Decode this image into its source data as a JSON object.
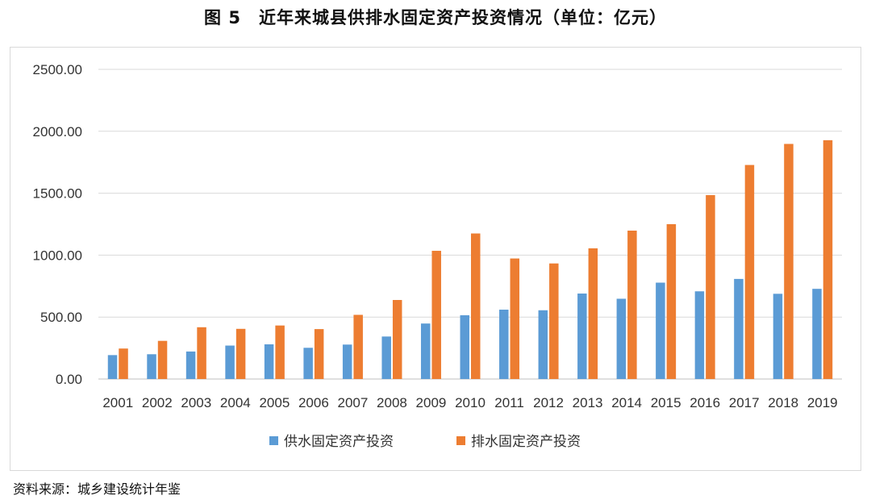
{
  "title": "图 5　近年来城县供排水固定资产投资情况（单位：亿元）",
  "source": "资料来源：城乡建设统计年鉴",
  "colors": {
    "supply": "#5b9bd5",
    "drain": "#ed7d31",
    "grid": "#d9d9d9"
  },
  "chart_data": {
    "type": "bar",
    "title": "图 5　近年来城县供排水固定资产投资情况（单位：亿元）",
    "categories": [
      "2001",
      "2002",
      "2003",
      "2004",
      "2005",
      "2006",
      "2007",
      "2008",
      "2009",
      "2010",
      "2011",
      "2012",
      "2013",
      "2014",
      "2015",
      "2016",
      "2017",
      "2018",
      "2019"
    ],
    "series": [
      {
        "name": "供水固定资产投资",
        "values": [
          193,
          200,
          222,
          270,
          280,
          252,
          278,
          343,
          448,
          515,
          560,
          555,
          690,
          648,
          778,
          708,
          808,
          688,
          728
        ]
      },
      {
        "name": "排水固定资产投资",
        "values": [
          246,
          308,
          418,
          405,
          432,
          403,
          518,
          638,
          1035,
          1175,
          973,
          933,
          1055,
          1198,
          1250,
          1485,
          1728,
          1898,
          1928
        ]
      }
    ],
    "ylim": [
      0,
      2500
    ],
    "yticks": [
      "0.00",
      "500.00",
      "1000.00",
      "1500.00",
      "2000.00",
      "2500.00"
    ],
    "grid": true,
    "legend": "bottom"
  }
}
